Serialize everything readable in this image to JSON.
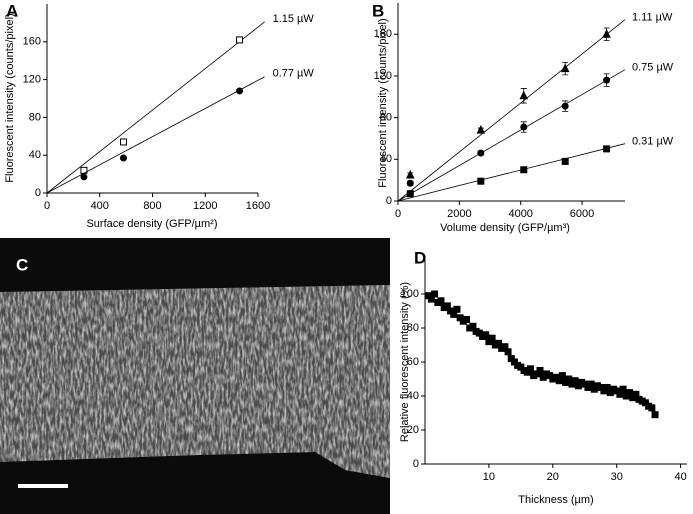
{
  "chart_data": [
    {
      "type": "scatter",
      "panel": "A",
      "x_label": "Surface density (GFP/µm²)",
      "y_label": "Fluorescent intensity (counts/pixel)",
      "xlim": [
        0,
        1600
      ],
      "ylim": [
        0,
        200
      ],
      "xticks": [
        0,
        400,
        800,
        1200,
        1600
      ],
      "yticks": [
        0,
        40,
        80,
        120,
        160
      ],
      "x": [
        280,
        580,
        1460
      ],
      "series": [
        {
          "name": "1.15 µW",
          "color": "#000000",
          "marker": "open-square",
          "values": [
            24,
            54,
            162
          ],
          "fit_x": [
            0,
            1650
          ],
          "fit_y": [
            0,
            181
          ]
        },
        {
          "name": "0.77 µW",
          "color": "#000000",
          "marker": "filled-circle",
          "values": [
            17,
            37,
            108
          ],
          "fit_x": [
            0,
            1650
          ],
          "fit_y": [
            0,
            123
          ]
        }
      ]
    },
    {
      "type": "scatter",
      "panel": "B",
      "x_label": "Volume density (GFP/µm³)",
      "y_label": "Fluorescent intensity (counts/pixel)",
      "xlim": [
        0,
        7400
      ],
      "ylim": [
        0,
        190
      ],
      "xticks": [
        0,
        2000,
        4000,
        6000
      ],
      "yticks": [
        0,
        40,
        80,
        120,
        160
      ],
      "x": [
        400,
        2700,
        4100,
        5450,
        6800
      ],
      "series": [
        {
          "name": "1.11 µW",
          "color": "#000000",
          "marker": "filled-triangle",
          "values": [
            25,
            68,
            101,
            127,
            160
          ],
          "errors": [
            2,
            2,
            7,
            6,
            6
          ],
          "fit_x": [
            0,
            7400
          ],
          "fit_y": [
            0,
            174
          ]
        },
        {
          "name": "0.75 µW",
          "color": "#000000",
          "marker": "filled-circle",
          "values": [
            17,
            46,
            71,
            91,
            116
          ],
          "errors": [
            2,
            2,
            5,
            5,
            6
          ],
          "fit_x": [
            0,
            7400
          ],
          "fit_y": [
            0,
            126
          ]
        },
        {
          "name": "0.31 µW",
          "color": "#000000",
          "marker": "filled-square",
          "values": [
            7,
            19,
            30,
            38,
            50
          ],
          "errors": [
            1,
            1,
            2,
            2,
            2
          ],
          "fit_x": [
            0,
            7400
          ],
          "fit_y": [
            0,
            55
          ]
        }
      ]
    },
    {
      "type": "image",
      "panel": "C"
    },
    {
      "type": "scatter",
      "panel": "D",
      "x_label": "Thickness (µm)",
      "y_label": "Relative fluorescent intensity (%)",
      "xlim": [
        0,
        41
      ],
      "ylim": [
        0,
        120
      ],
      "xticks": [
        10,
        20,
        30,
        40
      ],
      "yticks": [
        0,
        20,
        40,
        60,
        80,
        100
      ],
      "x": [
        0.5,
        1,
        1.5,
        2,
        2.5,
        3,
        3.5,
        4,
        4.5,
        5,
        5.5,
        6,
        6.5,
        7,
        7.5,
        8,
        8.5,
        9,
        9.5,
        10,
        10.5,
        11,
        11.5,
        12,
        12.5,
        13,
        13.5,
        14,
        14.5,
        15,
        15.5,
        16,
        16.5,
        17,
        17.5,
        18,
        18.5,
        19,
        19.5,
        20,
        20.5,
        21,
        21.5,
        22,
        22.5,
        23,
        23.5,
        24,
        24.5,
        25,
        25.5,
        26,
        26.5,
        27,
        27.5,
        28,
        28.5,
        29,
        29.5,
        30,
        30.5,
        31,
        31.5,
        32,
        32.5,
        33,
        33.5,
        34,
        34.5,
        35,
        35.5,
        36
      ],
      "series": [
        {
          "color": "#000000",
          "marker": "filled-square",
          "values": [
            99,
            97,
            100,
            95,
            96,
            92,
            93,
            90,
            88,
            91,
            86,
            84,
            85,
            80,
            81,
            78,
            77,
            75,
            76,
            72,
            74,
            70,
            71,
            68,
            69,
            66,
            62,
            60,
            58,
            57,
            55,
            54,
            56,
            52,
            53,
            55,
            51,
            53,
            52,
            50,
            51,
            49,
            52,
            48,
            50,
            47,
            49,
            46,
            48,
            47,
            45,
            47,
            44,
            46,
            45,
            43,
            45,
            42,
            44,
            43,
            41,
            44,
            40,
            42,
            39,
            41,
            38,
            37,
            36,
            34,
            33,
            29
          ]
        }
      ]
    }
  ]
}
